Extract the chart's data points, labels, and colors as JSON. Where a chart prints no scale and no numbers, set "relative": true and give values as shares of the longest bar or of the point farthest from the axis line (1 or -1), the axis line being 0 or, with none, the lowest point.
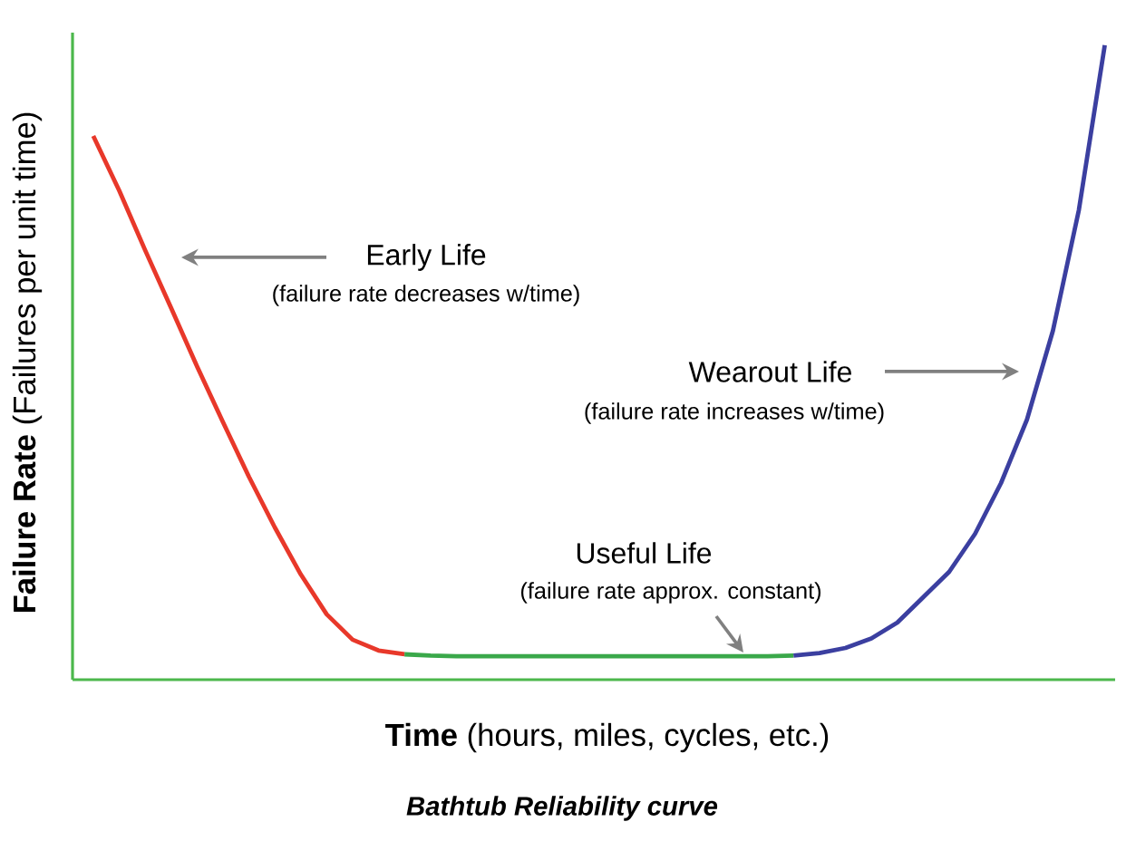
{
  "chart_data": {
    "type": "line",
    "title": "Bathtub Reliability curve",
    "xlabel": "**Time** (hours, miles, cycles, etc.)",
    "ylabel": "**Failure Rate** (Failures per unit time)",
    "relative": true,
    "marker": "none",
    "line_style": "solid",
    "categories": [
      null,
      null,
      null,
      null,
      null,
      null,
      null,
      null,
      null,
      null,
      null,
      null,
      null,
      null,
      null,
      null,
      null,
      null,
      null,
      null,
      null,
      null,
      null,
      null,
      null,
      null,
      null,
      null,
      null,
      null,
      null,
      null,
      null,
      null,
      null,
      null,
      null,
      null,
      null,
      null
    ],
    "series": [
      {
        "color": "#e8382a",
        "values": [
          0.857,
          0.771,
          0.677,
          0.586,
          0.494,
          0.406,
          0.32,
          0.24,
          0.166,
          0.103,
          0.063,
          0.046,
          0.04,
          null,
          null,
          null,
          null,
          null,
          null,
          null,
          null,
          null,
          null,
          null,
          null,
          null,
          null,
          null,
          null,
          null,
          null,
          null,
          null,
          null,
          null,
          null,
          null,
          null,
          null,
          null
        ]
      },
      {
        "color": "#3aa84a",
        "values": [
          null,
          null,
          null,
          null,
          null,
          null,
          null,
          null,
          null,
          null,
          null,
          null,
          0.04,
          0.038,
          0.037,
          0.037,
          0.037,
          0.037,
          0.037,
          0.037,
          0.037,
          0.037,
          0.037,
          0.037,
          0.037,
          0.037,
          0.037,
          0.038,
          null,
          null,
          null,
          null,
          null,
          null,
          null,
          null,
          null,
          null,
          null,
          null
        ]
      },
      {
        "color": "#3b3fa0",
        "values": [
          null,
          null,
          null,
          null,
          null,
          null,
          null,
          null,
          null,
          null,
          null,
          null,
          null,
          null,
          null,
          null,
          null,
          null,
          null,
          null,
          null,
          null,
          null,
          null,
          null,
          null,
          null,
          0.038,
          0.042,
          0.05,
          0.065,
          0.09,
          0.13,
          0.17,
          0.23,
          0.31,
          0.41,
          0.55,
          0.74,
          1.0
        ]
      }
    ],
    "annotations": [
      "Early Life",
      "(failure rate decreases w/time)",
      "Wearout Life",
      "(failure rate increases w/time)",
      "Useful Life",
      "(failure rate approx. constant)"
    ]
  }
}
